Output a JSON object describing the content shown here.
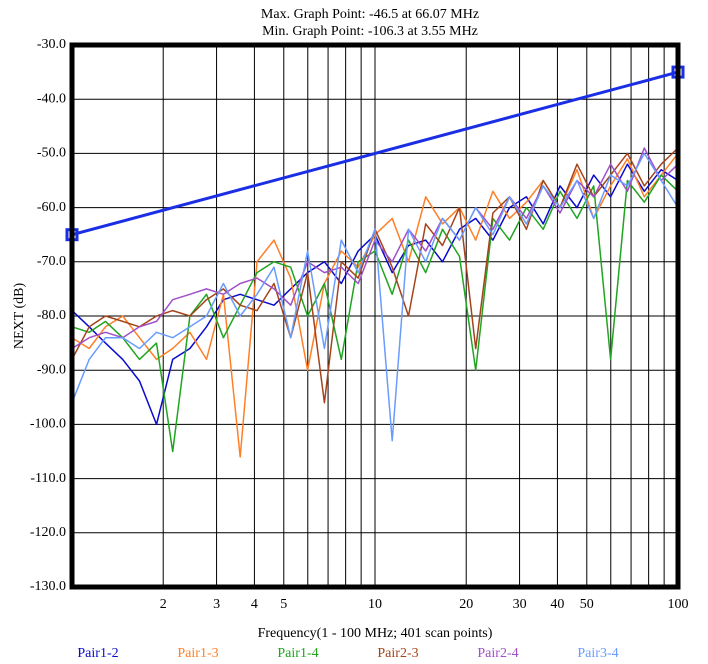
{
  "chart_data": {
    "type": "line",
    "title": "Max. Graph Point: -46.5 at 66.07 MHz",
    "subtitle": "Min. Graph Point: -106.3 at 3.55 MHz",
    "x_label": "Frequency(1 - 100 MHz; 401 scan points)",
    "y_label": "NEXT (dB)",
    "log_x": true,
    "grid": true,
    "xlim": [
      1,
      100
    ],
    "ylim": [
      -130,
      -30
    ],
    "xticks": [
      2,
      3,
      4,
      5,
      10,
      20,
      30,
      40,
      50,
      100
    ],
    "xminor": [
      6,
      7,
      8,
      9,
      60,
      70,
      80,
      90
    ],
    "yticks": [
      {
        "value": -30,
        "label": "-30.0"
      },
      {
        "value": -40,
        "label": "-40.0"
      },
      {
        "value": -50,
        "label": "-50.0"
      },
      {
        "value": -60,
        "label": "-60.0"
      },
      {
        "value": -70,
        "label": "-70.0"
      },
      {
        "value": -80,
        "label": "-80.0"
      },
      {
        "value": -90,
        "label": "-90.0"
      },
      {
        "value": -100,
        "label": "-100.0"
      },
      {
        "value": -110,
        "label": "-110.0"
      },
      {
        "value": -120,
        "label": "-120.0"
      },
      {
        "value": -130,
        "label": "-130.0"
      }
    ],
    "x": [
      1,
      1.14,
      1.29,
      1.47,
      1.67,
      1.9,
      2.15,
      2.45,
      2.78,
      3.16,
      3.59,
      4.08,
      4.64,
      5.27,
      5.99,
      6.81,
      7.74,
      8.8,
      10,
      11.4,
      12.9,
      14.7,
      16.7,
      19,
      21.5,
      24.5,
      27.8,
      31.6,
      35.9,
      40.8,
      46.4,
      52.7,
      59.9,
      68.1,
      77.4,
      88,
      100
    ],
    "limit_line": {
      "color": "#1a2ee6",
      "x": [
        1,
        100
      ],
      "values": [
        -65,
        -35
      ]
    },
    "series": [
      {
        "name": "Pair1-2",
        "color": "#0a0acc",
        "values": [
          -79,
          -82,
          -85,
          -88,
          -92,
          -100,
          -88,
          -86,
          -82,
          -77,
          -76,
          -77,
          -78,
          -75,
          -72,
          -70,
          -74,
          -68,
          -65,
          -72,
          -67,
          -66,
          -70,
          -64,
          -62,
          -66,
          -60,
          -58,
          -63,
          -56,
          -60,
          -54,
          -58,
          -52,
          -57,
          -53,
          -55
        ]
      },
      {
        "name": "Pair1-3",
        "color": "#ff7f27",
        "values": [
          -84,
          -86,
          -82,
          -80,
          -84,
          -88,
          -86,
          -83,
          -88,
          -76,
          -106,
          -70,
          -66,
          -73,
          -90,
          -74,
          -68,
          -71,
          -65,
          -62,
          -70,
          -58,
          -63,
          -60,
          -66,
          -57,
          -62,
          -59,
          -55,
          -60,
          -53,
          -62,
          -56,
          -51,
          -58,
          -54,
          -50
        ]
      },
      {
        "name": "Pair1-4",
        "color": "#1fa51f",
        "values": [
          -82,
          -83,
          -81,
          -84,
          -88,
          -85,
          -105,
          -80,
          -76,
          -84,
          -78,
          -72,
          -70,
          -71,
          -80,
          -74,
          -88,
          -70,
          -68,
          -76,
          -66,
          -72,
          -64,
          -69,
          -90,
          -62,
          -66,
          -60,
          -64,
          -57,
          -62,
          -56,
          -88,
          -55,
          -59,
          -54,
          -57
        ]
      },
      {
        "name": "Pair2-3",
        "color": "#a3441c",
        "values": [
          -88,
          -82,
          -80,
          -81,
          -82,
          -80,
          -79,
          -80,
          -77,
          -75,
          -78,
          -79,
          -74,
          -84,
          -72,
          -96,
          -70,
          -73,
          -64,
          -71,
          -80,
          -63,
          -67,
          -60,
          -86,
          -61,
          -58,
          -64,
          -55,
          -60,
          -52,
          -58,
          -54,
          -50,
          -56,
          -52,
          -49
        ]
      },
      {
        "name": "Pair2-4",
        "color": "#a050c8",
        "values": [
          -86,
          -84,
          -83,
          -84,
          -82,
          -81,
          -77,
          -76,
          -75,
          -76,
          -74,
          -73,
          -75,
          -78,
          -70,
          -72,
          -71,
          -74,
          -66,
          -70,
          -64,
          -68,
          -62,
          -66,
          -60,
          -64,
          -58,
          -62,
          -56,
          -61,
          -55,
          -58,
          -52,
          -57,
          -49,
          -55,
          -52
        ]
      },
      {
        "name": "Pair3-4",
        "color": "#6a9cff",
        "values": [
          -96,
          -88,
          -84,
          -84,
          -86,
          -83,
          -84,
          -82,
          -80,
          -74,
          -80,
          -76,
          -71,
          -84,
          -68,
          -86,
          -66,
          -72,
          -64,
          -103,
          -64,
          -70,
          -62,
          -66,
          -60,
          -65,
          -58,
          -63,
          -56,
          -60,
          -55,
          -62,
          -54,
          -56,
          -50,
          -55,
          -60
        ]
      }
    ]
  }
}
